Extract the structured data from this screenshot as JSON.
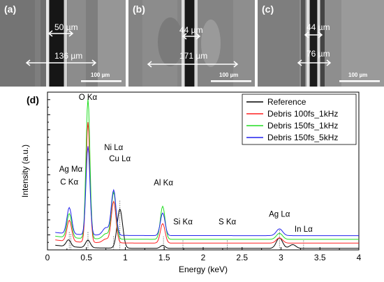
{
  "panels": [
    {
      "label": "(a)",
      "inner_width": "50 µm",
      "outer_width": "136 µm",
      "scale_bar": "100 µm"
    },
    {
      "label": "(b)",
      "inner_width": "44 µm",
      "outer_width": "171 µm",
      "scale_bar": "100 µm"
    },
    {
      "label": "(c)",
      "inner_width": "44 µm",
      "outer_width": "76 µm",
      "scale_bar": "100 µm"
    }
  ],
  "colors": {
    "reference": "#000000",
    "debris_100fs_1khz": "#ff2020",
    "debris_150fs_1khz": "#22dd22",
    "debris_150fs_5khz": "#2222ee"
  },
  "chart_data": {
    "type": "line",
    "panel_label": "(d)",
    "xlabel": "Energy (keV)",
    "ylabel": "Intensity (a.u.)",
    "xlim": [
      0,
      4
    ],
    "xticks": [
      "0",
      "0.5",
      "1",
      "1.5",
      "2",
      "2.5",
      "3",
      "3.5",
      "4"
    ],
    "legend_position": "top-right",
    "series": [
      {
        "name": "Reference",
        "color": "#000000",
        "offset": 0.2,
        "peaks": [
          [
            0.27,
            0.9,
            0.03
          ],
          [
            0.52,
            1.0,
            0.03
          ],
          [
            0.93,
            5.2,
            0.035
          ],
          [
            1.48,
            0.4,
            0.03
          ],
          [
            2.98,
            1.4,
            0.04
          ],
          [
            3.15,
            0.5,
            0.04
          ]
        ]
      },
      {
        "name": "Debris 100fs_1kHz",
        "color": "#ff2020",
        "offset": 0.9,
        "peaks": [
          [
            0.28,
            2.8,
            0.03
          ],
          [
            0.52,
            16.0,
            0.025
          ],
          [
            0.75,
            0.5,
            0.04
          ],
          [
            0.85,
            5.5,
            0.03
          ],
          [
            1.48,
            2.6,
            0.03
          ],
          [
            2.98,
            0.7,
            0.04
          ]
        ]
      },
      {
        "name": "Debris 150fs_1kHz",
        "color": "#22dd22",
        "offset": 1.4,
        "peaks": [
          [
            0.28,
            3.2,
            0.03
          ],
          [
            0.52,
            18.6,
            0.025
          ],
          [
            0.75,
            0.7,
            0.04
          ],
          [
            0.85,
            6.2,
            0.03
          ],
          [
            1.48,
            4.4,
            0.03
          ],
          [
            2.98,
            0.8,
            0.04
          ]
        ]
      },
      {
        "name": "Debris 150fs_5kHz",
        "color": "#2222ee",
        "offset": 1.9,
        "peaks": [
          [
            0.28,
            3.5,
            0.03
          ],
          [
            0.52,
            11.8,
            0.025
          ],
          [
            0.75,
            1.0,
            0.04
          ],
          [
            0.85,
            6.0,
            0.03
          ],
          [
            1.48,
            3.0,
            0.03
          ],
          [
            2.98,
            0.9,
            0.04
          ]
        ]
      }
    ],
    "annotations": [
      {
        "text": "O Kα",
        "x": 0.52
      },
      {
        "text": "Ni Lα",
        "x": 0.85
      },
      {
        "text": "Cu Lα",
        "x": 0.93
      },
      {
        "text": "Ag Mα",
        "x": 0.3
      },
      {
        "text": "C Kα",
        "x": 0.28
      },
      {
        "text": "Al Kα",
        "x": 1.49
      },
      {
        "text": "Si Kα",
        "x": 1.74
      },
      {
        "text": "S Kα",
        "x": 2.31
      },
      {
        "text": "Ag Lα",
        "x": 2.98
      },
      {
        "text": "In Lα",
        "x": 3.29
      }
    ]
  }
}
